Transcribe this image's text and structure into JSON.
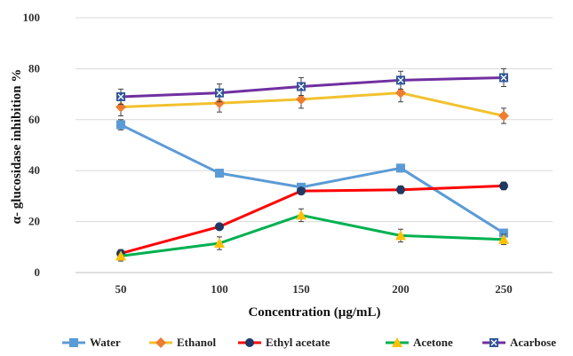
{
  "chart_data": {
    "type": "line",
    "title": "",
    "xlabel": "Concentration (µg/mL)",
    "ylabel": "α- glucosidase inhibition %",
    "x": [
      50,
      100,
      150,
      200,
      250
    ],
    "x_tick_labels": [
      "50",
      "100",
      "150",
      "200",
      "250"
    ],
    "y_tick_labels": [
      "0",
      "20",
      "40",
      "60",
      "80",
      "100"
    ],
    "ylim": [
      0,
      100
    ],
    "grid": "horizontal",
    "legend_position": "bottom",
    "series": [
      {
        "name": "Water",
        "color": "#5b9bd5",
        "marker": "square",
        "values": [
          58,
          39,
          33.5,
          41,
          15.5
        ],
        "errors": [
          2,
          1.5,
          1.5,
          1.5,
          1.5
        ]
      },
      {
        "name": "Ethanol",
        "color": "#ed7d31",
        "line_color": "#f2c12e",
        "marker": "diamond",
        "values": [
          65,
          66.5,
          68,
          70.5,
          61.5
        ],
        "errors": [
          3.5,
          3.5,
          3.5,
          3.5,
          3
        ]
      },
      {
        "name": "Ethyl acetate",
        "color": "#ff0000",
        "marker_color": "#203864",
        "marker": "circle",
        "values": [
          7.5,
          18,
          32,
          32.5,
          34
        ],
        "errors": [
          1.5,
          1,
          1,
          1.5,
          1.5
        ]
      },
      {
        "name": "Acetone",
        "color": "#00b050",
        "marker_color": "#ffc000",
        "marker": "triangle",
        "values": [
          6.5,
          11.5,
          22.5,
          14.5,
          13
        ],
        "errors": [
          2,
          2.5,
          2.5,
          2.5,
          2
        ]
      },
      {
        "name": "Acarbose",
        "color": "#7030a0",
        "marker_color": "#2f5597",
        "marker": "x-square",
        "values": [
          69,
          70.5,
          73,
          75.5,
          76.5
        ],
        "errors": [
          3,
          3.5,
          3.5,
          3.5,
          3.5
        ]
      }
    ]
  }
}
